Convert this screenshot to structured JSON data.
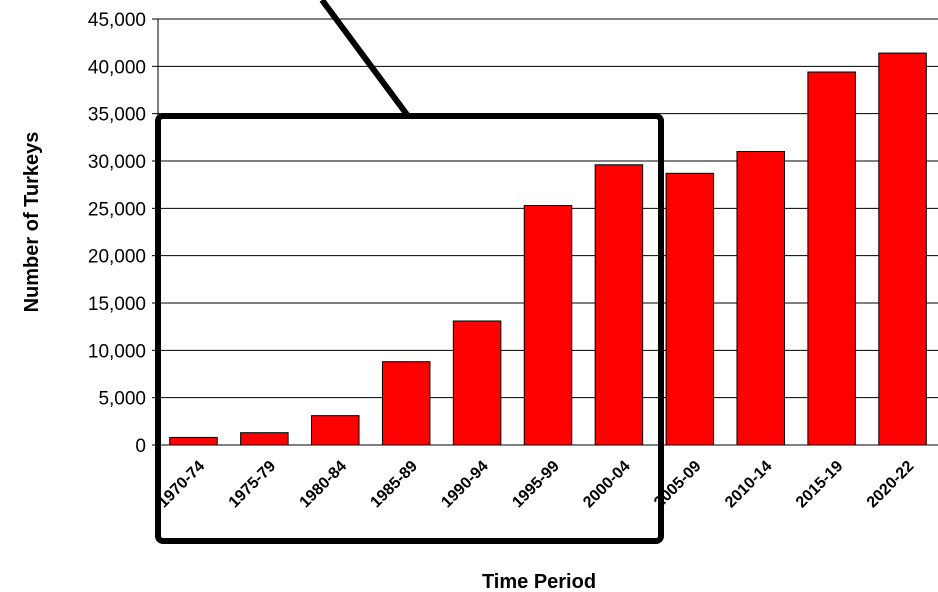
{
  "chart_data": {
    "type": "bar",
    "title": "",
    "xlabel": "Time Period",
    "ylabel": "Number of Turkeys",
    "ylim": [
      0,
      45000
    ],
    "yticks": [
      0,
      5000,
      10000,
      15000,
      20000,
      25000,
      30000,
      35000,
      40000,
      45000
    ],
    "ytick_labels": [
      "0",
      "5,000",
      "10,000",
      "15,000",
      "20,000",
      "25,000",
      "30,000",
      "35,000",
      "40,000",
      "45,000"
    ],
    "grid": true,
    "categories": [
      "1970-74",
      "1975-79",
      "1980-84",
      "1985-89",
      "1990-94",
      "1995-99",
      "2000-04",
      "2005-09",
      "2010-14",
      "2015-19",
      "2020-22"
    ],
    "values": [
      800,
      1300,
      3100,
      8800,
      13100,
      25300,
      29600,
      28700,
      31000,
      39400,
      41400
    ],
    "bar_color": "#ff0000",
    "bar_edge_color": "#000000",
    "annotations": [
      {
        "type": "callout-box",
        "covers": [
          "1970-74",
          "1975-79",
          "1980-84",
          "1985-89",
          "1990-94",
          "1995-99",
          "2000-04"
        ],
        "color": "#000000"
      }
    ]
  }
}
